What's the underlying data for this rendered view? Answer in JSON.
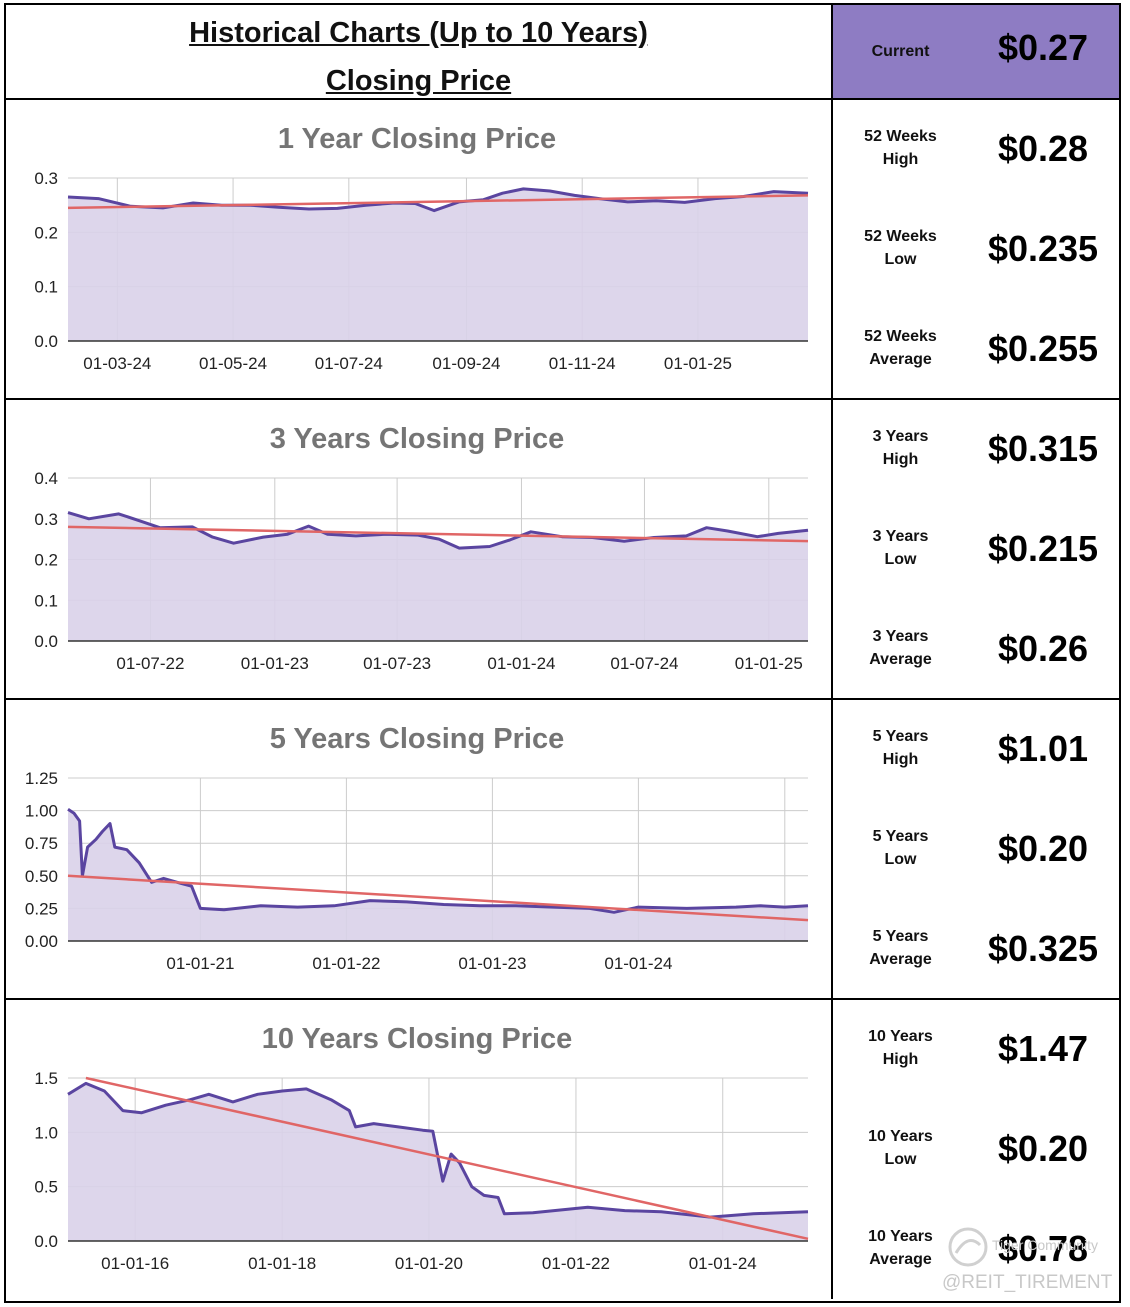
{
  "header": {
    "title_line1": "Historical Charts (Up to 10 Years)",
    "title_line2": "Closing Price",
    "current_label": "Current",
    "current_value": "$0.27"
  },
  "colors": {
    "area_fill": "#d9d2e9",
    "price_line": "#5a45a0",
    "trend_line": "#e06666",
    "header_bg": "#8e7cc3",
    "grid": "#cccccc",
    "title_text": "#757575"
  },
  "stats": [
    [
      {
        "label_line1": "52 Weeks",
        "label_line2": "High",
        "value": "$0.28"
      },
      {
        "label_line1": "52 Weeks",
        "label_line2": "Low",
        "value": "$0.235"
      },
      {
        "label_line1": "52 Weeks",
        "label_line2": "Average",
        "value": "$0.255"
      }
    ],
    [
      {
        "label_line1": "3 Years",
        "label_line2": "High",
        "value": "$0.315"
      },
      {
        "label_line1": "3 Years",
        "label_line2": "Low",
        "value": "$0.215"
      },
      {
        "label_line1": "3 Years",
        "label_line2": "Average",
        "value": "$0.26"
      }
    ],
    [
      {
        "label_line1": "5 Years",
        "label_line2": "High",
        "value": "$1.01"
      },
      {
        "label_line1": "5 Years",
        "label_line2": "Low",
        "value": "$0.20"
      },
      {
        "label_line1": "5 Years",
        "label_line2": "Average",
        "value": "$0.325"
      }
    ],
    [
      {
        "label_line1": "10 Years",
        "label_line2": "High",
        "value": "$1.47"
      },
      {
        "label_line1": "10 Years",
        "label_line2": "Low",
        "value": "$0.20"
      },
      {
        "label_line1": "10 Years",
        "label_line2": "Average",
        "value": "$0.78"
      }
    ]
  ],
  "watermark": {
    "brand": "Tiger Community",
    "handle": "@REIT_TIREMENT"
  },
  "chart_data": [
    {
      "type": "area",
      "title": "1 Year Closing Price",
      "x_range": [
        "2024-02-04",
        "2025-02-28"
      ],
      "ylim": [
        0,
        0.3
      ],
      "y_ticks": [
        "0.0",
        "0.1",
        "0.2",
        "0.3"
      ],
      "y_tick_values": [
        0,
        0.1,
        0.2,
        0.3
      ],
      "x_ticks": [
        {
          "date": "2024-03-01",
          "label": "01-03-24"
        },
        {
          "date": "2024-05-01",
          "label": "01-05-24"
        },
        {
          "date": "2024-07-01",
          "label": "01-07-24"
        },
        {
          "date": "2024-09-01",
          "label": "01-09-24"
        },
        {
          "date": "2024-11-01",
          "label": "01-11-24"
        },
        {
          "date": "2025-01-01",
          "label": "01-01-25"
        }
      ],
      "grid": true,
      "series": [
        {
          "points": [
            [
              "2024-02-04",
              0.265
            ],
            [
              "2024-02-20",
              0.262
            ],
            [
              "2024-03-08",
              0.248
            ],
            [
              "2024-03-25",
              0.245
            ],
            [
              "2024-04-10",
              0.254
            ],
            [
              "2024-04-25",
              0.25
            ],
            [
              "2024-05-10",
              0.25
            ],
            [
              "2024-05-25",
              0.246
            ],
            [
              "2024-06-10",
              0.243
            ],
            [
              "2024-06-25",
              0.244
            ],
            [
              "2024-07-10",
              0.25
            ],
            [
              "2024-07-25",
              0.254
            ],
            [
              "2024-08-05",
              0.253
            ],
            [
              "2024-08-15",
              0.24
            ],
            [
              "2024-08-28",
              0.256
            ],
            [
              "2024-09-10",
              0.26
            ],
            [
              "2024-09-20",
              0.272
            ],
            [
              "2024-10-01",
              0.28
            ],
            [
              "2024-10-15",
              0.276
            ],
            [
              "2024-10-28",
              0.268
            ],
            [
              "2024-11-10",
              0.262
            ],
            [
              "2024-11-25",
              0.256
            ],
            [
              "2024-12-10",
              0.258
            ],
            [
              "2024-12-25",
              0.255
            ],
            [
              "2025-01-10",
              0.262
            ],
            [
              "2025-01-25",
              0.266
            ],
            [
              "2025-02-10",
              0.275
            ],
            [
              "2025-02-28",
              0.272
            ]
          ]
        }
      ],
      "trend": [
        [
          "2024-02-04",
          0.245
        ],
        [
          "2025-02-28",
          0.268
        ]
      ]
    },
    {
      "type": "area",
      "title": "3 Years Closing Price",
      "x_range": [
        "2022-03-01",
        "2025-02-28"
      ],
      "ylim": [
        0,
        0.4
      ],
      "y_ticks": [
        "0.0",
        "0.1",
        "0.2",
        "0.3",
        "0.4"
      ],
      "y_tick_values": [
        0,
        0.1,
        0.2,
        0.3,
        0.4
      ],
      "x_ticks": [
        {
          "date": "2022-07-01",
          "label": "01-07-22"
        },
        {
          "date": "2023-01-01",
          "label": "01-01-23"
        },
        {
          "date": "2023-07-01",
          "label": "01-07-23"
        },
        {
          "date": "2024-01-01",
          "label": "01-01-24"
        },
        {
          "date": "2024-07-01",
          "label": "01-07-24"
        },
        {
          "date": "2025-01-01",
          "label": "01-01-25"
        }
      ],
      "grid": true,
      "series": [
        {
          "points": [
            [
              "2022-03-01",
              0.315
            ],
            [
              "2022-04-01",
              0.3
            ],
            [
              "2022-05-15",
              0.312
            ],
            [
              "2022-06-15",
              0.295
            ],
            [
              "2022-07-15",
              0.278
            ],
            [
              "2022-09-01",
              0.28
            ],
            [
              "2022-10-01",
              0.255
            ],
            [
              "2022-11-01",
              0.24
            ],
            [
              "2022-12-15",
              0.255
            ],
            [
              "2023-01-20",
              0.262
            ],
            [
              "2023-02-20",
              0.282
            ],
            [
              "2023-03-20",
              0.262
            ],
            [
              "2023-05-01",
              0.258
            ],
            [
              "2023-06-15",
              0.262
            ],
            [
              "2023-08-01",
              0.26
            ],
            [
              "2023-09-01",
              0.25
            ],
            [
              "2023-10-01",
              0.228
            ],
            [
              "2023-11-15",
              0.232
            ],
            [
              "2023-12-15",
              0.248
            ],
            [
              "2024-01-15",
              0.268
            ],
            [
              "2024-03-01",
              0.256
            ],
            [
              "2024-04-15",
              0.254
            ],
            [
              "2024-06-01",
              0.245
            ],
            [
              "2024-07-15",
              0.254
            ],
            [
              "2024-09-01",
              0.258
            ],
            [
              "2024-10-01",
              0.278
            ],
            [
              "2024-11-01",
              0.27
            ],
            [
              "2024-12-15",
              0.256
            ],
            [
              "2025-01-15",
              0.264
            ],
            [
              "2025-02-28",
              0.272
            ]
          ]
        }
      ],
      "trend": [
        [
          "2022-03-01",
          0.28
        ],
        [
          "2025-02-28",
          0.245
        ]
      ]
    },
    {
      "type": "area",
      "title": "5 Years Closing Price",
      "x_range": [
        "2020-02-05",
        "2025-02-28"
      ],
      "ylim": [
        0,
        1.25
      ],
      "y_ticks": [
        "0.00",
        "0.25",
        "0.50",
        "0.75",
        "1.00",
        "1.25"
      ],
      "y_tick_values": [
        0,
        0.25,
        0.5,
        0.75,
        1.0,
        1.25
      ],
      "x_ticks": [
        {
          "date": "2021-01-01",
          "label": "01-01-21"
        },
        {
          "date": "2022-01-01",
          "label": "01-01-22"
        },
        {
          "date": "2023-01-01",
          "label": "01-01-23"
        },
        {
          "date": "2024-01-01",
          "label": "01-01-24"
        },
        {
          "date": "2025-01-01",
          "label": ""
        }
      ],
      "grid": true,
      "series": [
        {
          "points": [
            [
              "2020-02-05",
              1.01
            ],
            [
              "2020-02-20",
              0.98
            ],
            [
              "2020-03-05",
              0.92
            ],
            [
              "2020-03-12",
              0.5
            ],
            [
              "2020-03-25",
              0.72
            ],
            [
              "2020-04-15",
              0.78
            ],
            [
              "2020-05-01",
              0.84
            ],
            [
              "2020-05-20",
              0.9
            ],
            [
              "2020-06-01",
              0.72
            ],
            [
              "2020-07-01",
              0.7
            ],
            [
              "2020-08-01",
              0.6
            ],
            [
              "2020-09-01",
              0.45
            ],
            [
              "2020-10-01",
              0.48
            ],
            [
              "2020-11-15",
              0.44
            ],
            [
              "2020-12-10",
              0.42
            ],
            [
              "2021-01-01",
              0.25
            ],
            [
              "2021-03-01",
              0.24
            ],
            [
              "2021-06-01",
              0.27
            ],
            [
              "2021-09-01",
              0.26
            ],
            [
              "2021-12-01",
              0.27
            ],
            [
              "2022-03-01",
              0.31
            ],
            [
              "2022-06-01",
              0.3
            ],
            [
              "2022-09-01",
              0.28
            ],
            [
              "2022-12-01",
              0.27
            ],
            [
              "2023-03-01",
              0.27
            ],
            [
              "2023-06-01",
              0.26
            ],
            [
              "2023-09-01",
              0.25
            ],
            [
              "2023-11-01",
              0.22
            ],
            [
              "2024-01-01",
              0.26
            ],
            [
              "2024-05-01",
              0.25
            ],
            [
              "2024-09-01",
              0.26
            ],
            [
              "2024-11-01",
              0.27
            ],
            [
              "2025-01-01",
              0.26
            ],
            [
              "2025-02-28",
              0.27
            ]
          ]
        }
      ],
      "trend": [
        [
          "2020-02-05",
          0.5
        ],
        [
          "2025-02-28",
          0.16
        ]
      ]
    },
    {
      "type": "area",
      "title": "10 Years Closing Price",
      "x_range": [
        "2015-02-01",
        "2025-02-28"
      ],
      "ylim": [
        0,
        1.5
      ],
      "y_ticks": [
        "0.0",
        "0.5",
        "1.0",
        "1.5"
      ],
      "y_tick_values": [
        0,
        0.5,
        1.0,
        1.5
      ],
      "x_ticks": [
        {
          "date": "2016-01-01",
          "label": "01-01-16"
        },
        {
          "date": "2018-01-01",
          "label": "01-01-18"
        },
        {
          "date": "2020-01-01",
          "label": "01-01-20"
        },
        {
          "date": "2022-01-01",
          "label": "01-01-22"
        },
        {
          "date": "2024-01-01",
          "label": "01-01-24"
        }
      ],
      "grid": true,
      "series": [
        {
          "points": [
            [
              "2015-02-01",
              1.35
            ],
            [
              "2015-05-01",
              1.45
            ],
            [
              "2015-08-01",
              1.38
            ],
            [
              "2015-11-01",
              1.2
            ],
            [
              "2016-02-01",
              1.18
            ],
            [
              "2016-06-01",
              1.25
            ],
            [
              "2016-10-01",
              1.3
            ],
            [
              "2017-01-01",
              1.35
            ],
            [
              "2017-05-01",
              1.28
            ],
            [
              "2017-09-01",
              1.35
            ],
            [
              "2018-01-01",
              1.38
            ],
            [
              "2018-05-01",
              1.4
            ],
            [
              "2018-09-01",
              1.3
            ],
            [
              "2018-12-01",
              1.2
            ],
            [
              "2019-01-01",
              1.05
            ],
            [
              "2019-04-01",
              1.08
            ],
            [
              "2019-08-01",
              1.05
            ],
            [
              "2019-12-01",
              1.02
            ],
            [
              "2020-01-20",
              1.01
            ],
            [
              "2020-03-10",
              0.55
            ],
            [
              "2020-04-20",
              0.8
            ],
            [
              "2020-06-01",
              0.72
            ],
            [
              "2020-08-01",
              0.5
            ],
            [
              "2020-10-01",
              0.42
            ],
            [
              "2020-12-10",
              0.4
            ],
            [
              "2021-01-10",
              0.25
            ],
            [
              "2021-06-01",
              0.26
            ],
            [
              "2022-03-01",
              0.31
            ],
            [
              "2022-09-01",
              0.28
            ],
            [
              "2023-03-01",
              0.27
            ],
            [
              "2023-11-01",
              0.22
            ],
            [
              "2024-06-01",
              0.25
            ],
            [
              "2025-02-28",
              0.27
            ]
          ]
        }
      ],
      "trend": [
        [
          "2015-05-01",
          1.5
        ],
        [
          "2025-02-28",
          0.02
        ]
      ]
    }
  ]
}
